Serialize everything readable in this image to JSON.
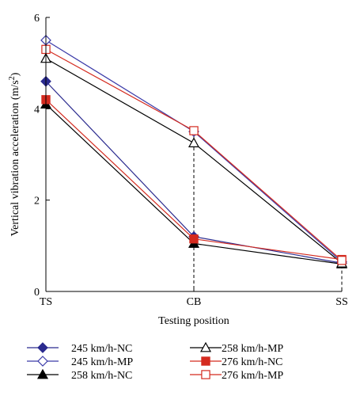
{
  "chart_data": {
    "type": "line",
    "categories": [
      "TS",
      "CB",
      "SS"
    ],
    "xlabel": "Testing position",
    "ylabel_main": "Vertical vibration acceleration (m/s",
    "ylabel_sup": "2",
    "ylabel_close": ")",
    "ylim": [
      0,
      6
    ],
    "yticks": [
      "0",
      "2",
      "4",
      "6"
    ],
    "grid": false,
    "legend_position": "bottom",
    "series": [
      {
        "name": "245 km/h-NC",
        "values": [
          4.6,
          1.2,
          0.62
        ],
        "color": "#2b2b8f",
        "marker": "diamond",
        "filled": true
      },
      {
        "name": "245 km/h-MP",
        "values": [
          5.5,
          3.5,
          0.65
        ],
        "color": "#3a3aa8",
        "marker": "diamond",
        "filled": false
      },
      {
        "name": "258 km/h-NC",
        "values": [
          4.1,
          1.05,
          0.6
        ],
        "color": "#000000",
        "marker": "triangle",
        "filled": true
      },
      {
        "name": "258 km/h-MP",
        "values": [
          5.1,
          3.25,
          0.62
        ],
        "color": "#000000",
        "marker": "triangle",
        "filled": false
      },
      {
        "name": "276 km/h-NC",
        "values": [
          4.2,
          1.15,
          0.7
        ],
        "color": "#d42a1f",
        "marker": "square",
        "filled": true
      },
      {
        "name": "276 km/h-MP",
        "values": [
          5.3,
          3.52,
          0.68
        ],
        "color": "#d42a1f",
        "marker": "square",
        "filled": false
      }
    ],
    "dashed_guides": [
      "CB",
      "SS"
    ]
  }
}
